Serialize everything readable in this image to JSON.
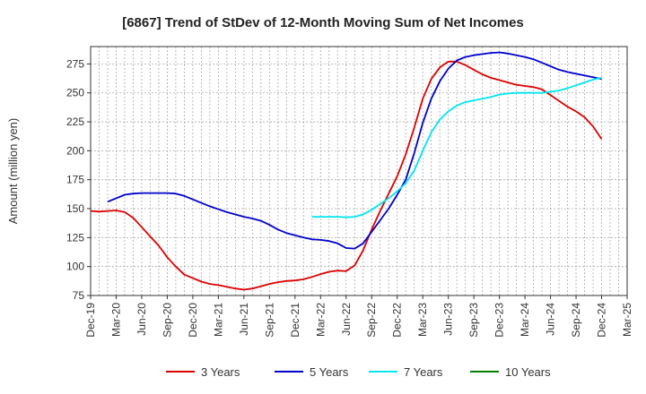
{
  "chart_data": {
    "type": "line",
    "title": "[6867]  Trend of StDev of 12-Month Moving Sum of Net Incomes",
    "xlabel": "",
    "ylabel": "Amount (million yen)",
    "ylim": [
      75,
      290
    ],
    "yticks": [
      75,
      100,
      125,
      150,
      175,
      200,
      225,
      250,
      275
    ],
    "x_range": [
      "Dec-19",
      "Mar-25"
    ],
    "xtick_labels": [
      "Dec-19",
      "Mar-20",
      "Jun-20",
      "Sep-20",
      "Dec-20",
      "Mar-21",
      "Jun-21",
      "Sep-21",
      "Dec-21",
      "Mar-22",
      "Jun-22",
      "Sep-22",
      "Dec-22",
      "Mar-23",
      "Jun-23",
      "Sep-23",
      "Dec-23",
      "Mar-24",
      "Jun-24",
      "Sep-24",
      "Dec-24",
      "Mar-25"
    ],
    "grid": true,
    "legend_position": "bottom",
    "series": [
      {
        "name": "3 Years",
        "color": "#dd0000",
        "points": [
          [
            "Dec-19",
            148
          ],
          [
            "Jan-20",
            147.5
          ],
          [
            "Feb-20",
            148
          ],
          [
            "Mar-20",
            148.5
          ],
          [
            "Apr-20",
            147
          ],
          [
            "May-20",
            142
          ],
          [
            "Jun-20",
            134
          ],
          [
            "Jul-20",
            126
          ],
          [
            "Aug-20",
            118
          ],
          [
            "Sep-20",
            108
          ],
          [
            "Oct-20",
            100
          ],
          [
            "Nov-20",
            93
          ],
          [
            "Dec-20",
            90
          ],
          [
            "Jan-21",
            87
          ],
          [
            "Feb-21",
            85
          ],
          [
            "Mar-21",
            84
          ],
          [
            "Apr-21",
            82.5
          ],
          [
            "May-21",
            81
          ],
          [
            "Jun-21",
            80
          ],
          [
            "Jul-21",
            81
          ],
          [
            "Aug-21",
            83
          ],
          [
            "Sep-21",
            85
          ],
          [
            "Oct-21",
            86.5
          ],
          [
            "Nov-21",
            87.5
          ],
          [
            "Dec-21",
            88
          ],
          [
            "Jan-22",
            89
          ],
          [
            "Feb-22",
            91
          ],
          [
            "Mar-22",
            93.5
          ],
          [
            "Apr-22",
            95.5
          ],
          [
            "May-22",
            96.5
          ],
          [
            "Jun-22",
            96
          ],
          [
            "Jul-22",
            101
          ],
          [
            "Aug-22",
            114
          ],
          [
            "Sep-22",
            132
          ],
          [
            "Oct-22",
            148
          ],
          [
            "Nov-22",
            163
          ],
          [
            "Dec-22",
            178
          ],
          [
            "Jan-23",
            197
          ],
          [
            "Feb-23",
            220
          ],
          [
            "Mar-23",
            245
          ],
          [
            "Apr-23",
            262
          ],
          [
            "May-23",
            272
          ],
          [
            "Jun-23",
            277
          ],
          [
            "Jul-23",
            277
          ],
          [
            "Aug-23",
            274
          ],
          [
            "Sep-23",
            270
          ],
          [
            "Oct-23",
            266
          ],
          [
            "Nov-23",
            263
          ],
          [
            "Dec-23",
            261
          ],
          [
            "Jan-24",
            259
          ],
          [
            "Feb-24",
            257
          ],
          [
            "Mar-24",
            256
          ],
          [
            "Apr-24",
            255
          ],
          [
            "May-24",
            253
          ],
          [
            "Jun-24",
            248
          ],
          [
            "Jul-24",
            243
          ],
          [
            "Aug-24",
            238
          ],
          [
            "Sep-24",
            234
          ],
          [
            "Oct-24",
            229
          ],
          [
            "Nov-24",
            221
          ],
          [
            "Dec-24",
            210
          ]
        ]
      },
      {
        "name": "5 Years",
        "color": "#0000cc",
        "points": [
          [
            "Feb-20",
            156
          ],
          [
            "Mar-20",
            159
          ],
          [
            "Apr-20",
            162
          ],
          [
            "May-20",
            163
          ],
          [
            "Jun-20",
            163.5
          ],
          [
            "Jul-20",
            163.5
          ],
          [
            "Aug-20",
            163.5
          ],
          [
            "Sep-20",
            163.5
          ],
          [
            "Oct-20",
            163
          ],
          [
            "Nov-20",
            161
          ],
          [
            "Dec-20",
            158
          ],
          [
            "Jan-21",
            155
          ],
          [
            "Feb-21",
            152
          ],
          [
            "Mar-21",
            149.5
          ],
          [
            "Apr-21",
            147
          ],
          [
            "May-21",
            145
          ],
          [
            "Jun-21",
            143
          ],
          [
            "Jul-21",
            141.5
          ],
          [
            "Aug-21",
            139.5
          ],
          [
            "Sep-21",
            136
          ],
          [
            "Oct-21",
            132
          ],
          [
            "Nov-21",
            129
          ],
          [
            "Dec-21",
            127
          ],
          [
            "Jan-22",
            125
          ],
          [
            "Feb-22",
            123.5
          ],
          [
            "Mar-22",
            123
          ],
          [
            "Apr-22",
            122
          ],
          [
            "May-22",
            120
          ],
          [
            "Jun-22",
            116
          ],
          [
            "Jul-22",
            115.5
          ],
          [
            "Aug-22",
            120
          ],
          [
            "Sep-22",
            130
          ],
          [
            "Oct-22",
            140
          ],
          [
            "Nov-22",
            150
          ],
          [
            "Dec-22",
            162
          ],
          [
            "Jan-23",
            175
          ],
          [
            "Feb-23",
            198
          ],
          [
            "Mar-23",
            224
          ],
          [
            "Apr-23",
            245
          ],
          [
            "May-23",
            260
          ],
          [
            "Jun-23",
            271
          ],
          [
            "Jul-23",
            278
          ],
          [
            "Aug-23",
            281
          ],
          [
            "Sep-23",
            282.5
          ],
          [
            "Oct-23",
            283.5
          ],
          [
            "Nov-23",
            284.5
          ],
          [
            "Dec-23",
            285
          ],
          [
            "Jan-24",
            284
          ],
          [
            "Feb-24",
            282.5
          ],
          [
            "Mar-24",
            281
          ],
          [
            "Apr-24",
            279
          ],
          [
            "May-24",
            276
          ],
          [
            "Jun-24",
            273
          ],
          [
            "Jul-24",
            270
          ],
          [
            "Aug-24",
            268
          ],
          [
            "Sep-24",
            266.5
          ],
          [
            "Oct-24",
            265
          ],
          [
            "Nov-24",
            263.5
          ],
          [
            "Dec-24",
            262
          ]
        ]
      },
      {
        "name": "7 Years",
        "color": "#00e5ee",
        "points": [
          [
            "Feb-22",
            143
          ],
          [
            "Mar-22",
            143
          ],
          [
            "Apr-22",
            143
          ],
          [
            "May-22",
            143
          ],
          [
            "Jun-22",
            142.5
          ],
          [
            "Jul-22",
            143
          ],
          [
            "Aug-22",
            145
          ],
          [
            "Sep-22",
            149
          ],
          [
            "Oct-22",
            154
          ],
          [
            "Nov-22",
            159
          ],
          [
            "Dec-22",
            165
          ],
          [
            "Jan-23",
            172
          ],
          [
            "Feb-23",
            183
          ],
          [
            "Mar-23",
            200
          ],
          [
            "Apr-23",
            216
          ],
          [
            "May-23",
            227
          ],
          [
            "Jun-23",
            234
          ],
          [
            "Jul-23",
            239
          ],
          [
            "Aug-23",
            242
          ],
          [
            "Sep-23",
            243.5
          ],
          [
            "Oct-23",
            245
          ],
          [
            "Nov-23",
            246.5
          ],
          [
            "Dec-23",
            248.5
          ],
          [
            "Jan-24",
            249.5
          ],
          [
            "Feb-24",
            250
          ],
          [
            "Mar-24",
            250
          ],
          [
            "Apr-24",
            250
          ],
          [
            "May-24",
            250
          ],
          [
            "Jun-24",
            251
          ],
          [
            "Jul-24",
            252
          ],
          [
            "Aug-24",
            254
          ],
          [
            "Sep-24",
            256.5
          ],
          [
            "Oct-24",
            259
          ],
          [
            "Nov-24",
            261.5
          ],
          [
            "Dec-24",
            263
          ]
        ]
      },
      {
        "name": "10 Years",
        "color": "#008000",
        "points": []
      }
    ]
  }
}
